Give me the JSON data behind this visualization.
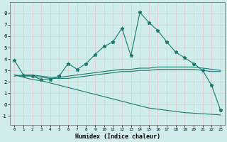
{
  "xlabel": "Humidex (Indice chaleur)",
  "bg_color": "#d0ecec",
  "line_color": "#1a7a6e",
  "xlim": [
    -0.5,
    23.5
  ],
  "ylim": [
    -1.8,
    9.0
  ],
  "xticks": [
    0,
    1,
    2,
    3,
    4,
    5,
    6,
    7,
    8,
    9,
    10,
    11,
    12,
    13,
    14,
    15,
    16,
    17,
    18,
    19,
    20,
    21,
    22,
    23
  ],
  "yticks": [
    -1,
    0,
    1,
    2,
    3,
    4,
    5,
    6,
    7,
    8
  ],
  "curve1_x": [
    0,
    1,
    2,
    3,
    4,
    5,
    6,
    7,
    8,
    9,
    10,
    11,
    12,
    13,
    14,
    15,
    16,
    17,
    18,
    19,
    20,
    21,
    22,
    23
  ],
  "curve1_y": [
    3.9,
    2.6,
    2.5,
    2.2,
    2.2,
    2.5,
    3.6,
    3.1,
    3.6,
    4.4,
    5.1,
    5.5,
    6.7,
    4.3,
    8.1,
    7.2,
    6.5,
    5.5,
    4.6,
    4.1,
    3.6,
    3.0,
    1.7,
    -0.5
  ],
  "curve2_x": [
    0,
    1,
    2,
    3,
    4,
    5,
    6,
    7,
    8,
    9,
    10,
    11,
    12,
    13,
    14,
    15,
    16,
    17,
    18,
    19,
    20,
    21,
    22,
    23
  ],
  "curve2_y": [
    2.5,
    2.6,
    2.6,
    2.5,
    2.4,
    2.4,
    2.5,
    2.6,
    2.7,
    2.8,
    2.9,
    3.0,
    3.1,
    3.1,
    3.2,
    3.2,
    3.3,
    3.3,
    3.3,
    3.3,
    3.3,
    3.2,
    3.1,
    3.0
  ],
  "curve3_x": [
    0,
    1,
    2,
    3,
    4,
    5,
    6,
    7,
    8,
    9,
    10,
    11,
    12,
    13,
    14,
    15,
    16,
    17,
    18,
    19,
    20,
    21,
    22,
    23
  ],
  "curve3_y": [
    2.6,
    2.5,
    2.5,
    2.4,
    2.3,
    2.3,
    2.3,
    2.4,
    2.5,
    2.6,
    2.7,
    2.8,
    2.9,
    2.9,
    3.0,
    3.0,
    3.1,
    3.1,
    3.1,
    3.1,
    3.1,
    3.0,
    2.9,
    2.9
  ],
  "curve4_x": [
    0,
    1,
    2,
    3,
    4,
    5,
    6,
    7,
    8,
    9,
    10,
    11,
    12,
    13,
    14,
    15,
    16,
    17,
    18,
    19,
    20,
    21,
    22,
    23
  ],
  "curve4_y": [
    2.6,
    2.4,
    2.2,
    2.1,
    1.9,
    1.7,
    1.5,
    1.3,
    1.1,
    0.9,
    0.7,
    0.5,
    0.3,
    0.1,
    -0.1,
    -0.3,
    -0.4,
    -0.5,
    -0.6,
    -0.7,
    -0.75,
    -0.8,
    -0.85,
    -0.9
  ]
}
